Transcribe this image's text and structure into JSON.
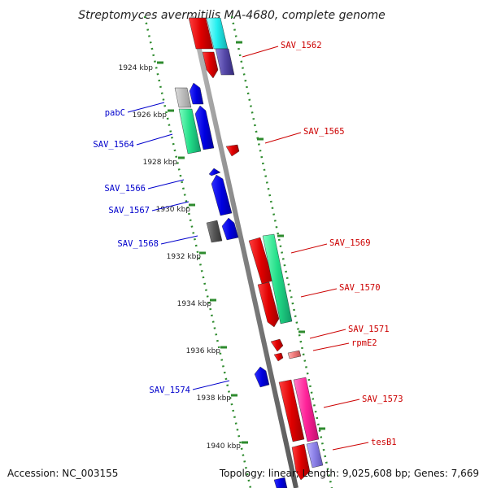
{
  "title": "Streptomyces avermitilis MA-4680, complete genome",
  "footer": {
    "accession": "Accession: NC_003155",
    "topology": "Topology: linear; Length: 9,025,608 bp; Genes: 7,669"
  },
  "ticks": [
    "1924 kbp",
    "1926 kbp",
    "1928 kbp",
    "1930 kbp",
    "1932 kbp",
    "1934 kbp",
    "1936 kbp",
    "1938 kbp",
    "1940 kbp"
  ],
  "genes_right": [
    "SAV_1562",
    "SAV_1565",
    "SAV_1569",
    "SAV_1570",
    "SAV_1571",
    "rpmE2",
    "SAV_1573",
    "tesB1"
  ],
  "genes_left": [
    "pabC",
    "SAV_1564",
    "SAV_1566",
    "SAV_1567",
    "SAV_1568",
    "SAV_1574"
  ],
  "colors": {
    "forward_strand": "#ff0000",
    "reverse_strand": "#0000ff",
    "backbone": "#888888",
    "dotted_track": "#2e8b2e"
  }
}
